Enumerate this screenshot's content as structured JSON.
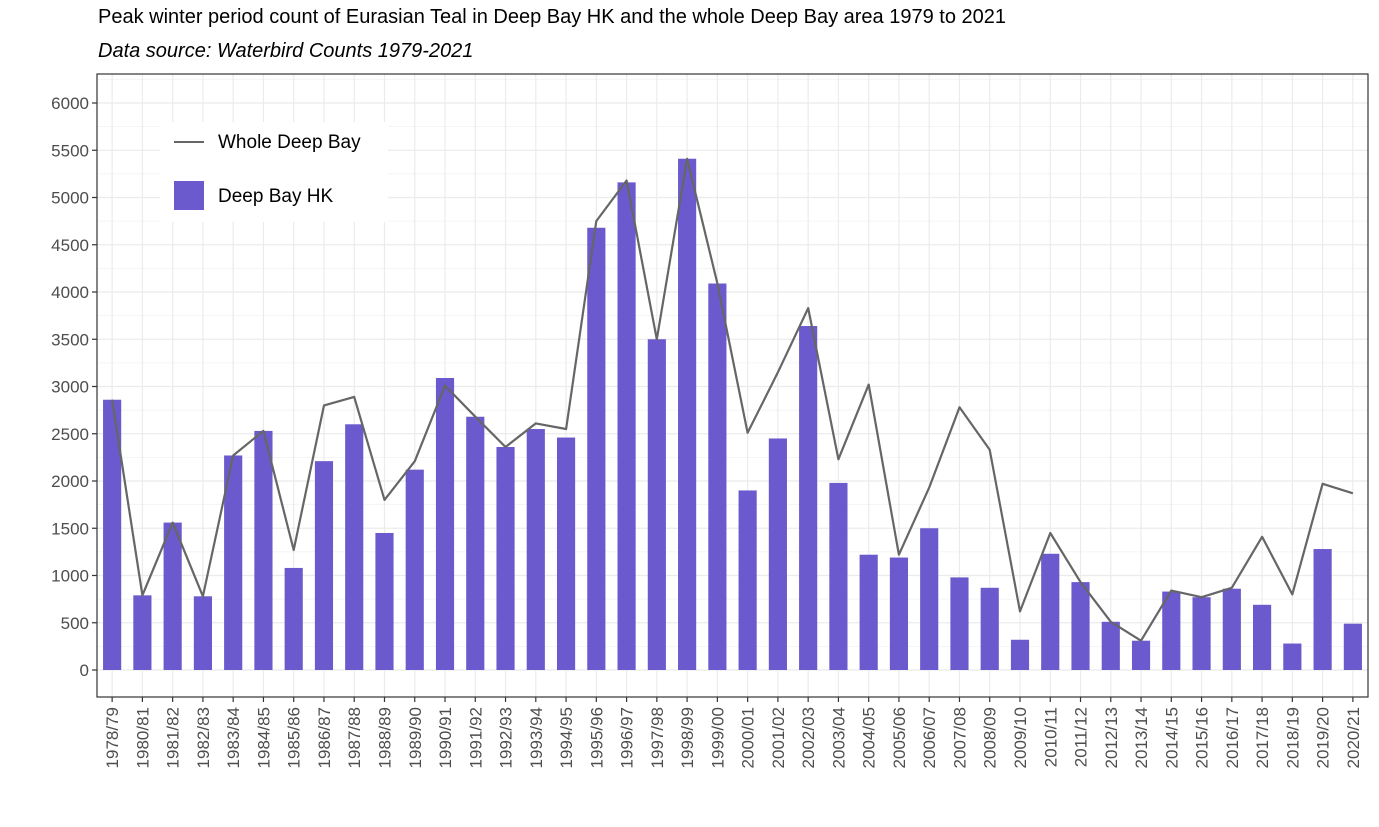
{
  "title": "Peak winter period count of Eurasian Teal in Deep Bay HK and the whole Deep Bay area 1979 to 2021",
  "subtitle": "Data source: Waterbird Counts 1979-2021",
  "colors": {
    "bar": "#6a5acd",
    "line": "#666666",
    "grid": "#ebebeb",
    "axis": "#333333"
  },
  "chart_data": {
    "type": "bar",
    "categories": [
      "1978/79",
      "1980/81",
      "1981/82",
      "1982/83",
      "1983/84",
      "1984/85",
      "1985/86",
      "1986/87",
      "1987/88",
      "1988/89",
      "1989/90",
      "1990/91",
      "1991/92",
      "1992/93",
      "1993/94",
      "1994/95",
      "1995/96",
      "1996/97",
      "1997/98",
      "1998/99",
      "1999/00",
      "2000/01",
      "2001/02",
      "2002/03",
      "2003/04",
      "2004/05",
      "2005/06",
      "2006/07",
      "2007/08",
      "2008/09",
      "2009/10",
      "2010/11",
      "2011/12",
      "2012/13",
      "2013/14",
      "2014/15",
      "2015/16",
      "2016/17",
      "2017/18",
      "2018/19",
      "2019/20",
      "2020/21"
    ],
    "series": [
      {
        "name": "Deep Bay HK",
        "type": "bar",
        "values": [
          2860,
          790,
          1560,
          780,
          2270,
          2530,
          1080,
          2210,
          2600,
          1450,
          2120,
          3090,
          2680,
          2360,
          2550,
          2460,
          4680,
          5160,
          3500,
          5410,
          4090,
          1900,
          2450,
          3640,
          1980,
          1220,
          1190,
          1500,
          980,
          870,
          320,
          1230,
          930,
          510,
          310,
          830,
          770,
          860,
          690,
          280,
          1280,
          490
        ]
      },
      {
        "name": "Whole Deep Bay",
        "type": "line",
        "values": [
          2860,
          790,
          1560,
          780,
          2270,
          2530,
          1270,
          2800,
          2890,
          1800,
          2210,
          3010,
          2680,
          2360,
          2610,
          2550,
          4750,
          5180,
          3500,
          5410,
          4090,
          2510,
          3150,
          3830,
          2230,
          3020,
          1220,
          1930,
          2780,
          2330,
          620,
          1450,
          930,
          510,
          310,
          840,
          770,
          870,
          1410,
          800,
          1970,
          1870
        ]
      }
    ],
    "ylim": [
      0,
      6000
    ],
    "yticks": [
      0,
      500,
      1000,
      1500,
      2000,
      2500,
      3000,
      3500,
      4000,
      4500,
      5000,
      5500,
      6000
    ],
    "grid": true,
    "legend_position": "top-left"
  }
}
